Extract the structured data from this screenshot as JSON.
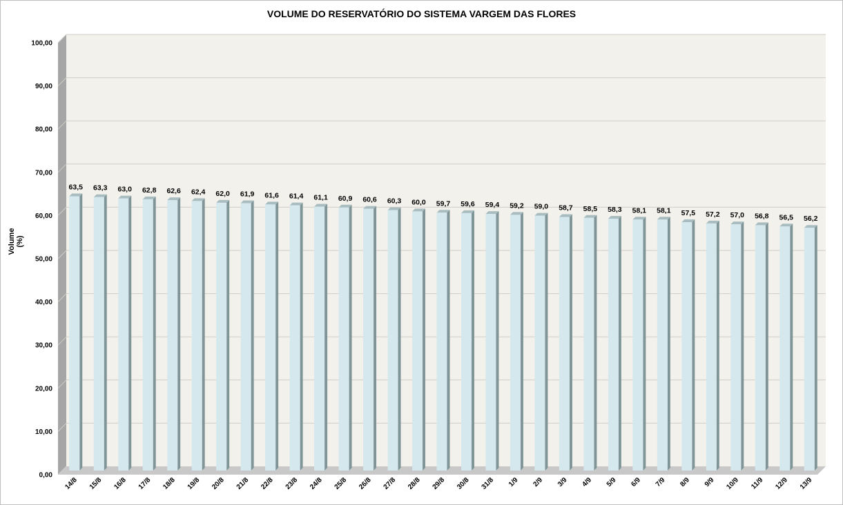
{
  "chart_data": {
    "type": "bar",
    "title": "VOLUME DO RESERVATÓRIO DO SISTEMA VARGEM DAS FLORES",
    "ylabel": "Volume (%)",
    "xlabel": "",
    "ylim": [
      0,
      100
    ],
    "yticks": [
      "0,00",
      "10,00",
      "20,00",
      "30,00",
      "40,00",
      "50,00",
      "60,00",
      "70,00",
      "80,00",
      "90,00",
      "100,00"
    ],
    "categories": [
      "14/8",
      "15/8",
      "16/8",
      "17/8",
      "18/8",
      "19/8",
      "20/8",
      "21/8",
      "22/8",
      "23/8",
      "24/8",
      "25/8",
      "26/8",
      "27/8",
      "28/8",
      "29/8",
      "30/8",
      "31/8",
      "1/9",
      "2/9",
      "3/9",
      "4/9",
      "5/9",
      "6/9",
      "7/9",
      "8/9",
      "9/9",
      "10/9",
      "11/9",
      "12/9",
      "13/9"
    ],
    "values": [
      63.5,
      63.3,
      63.0,
      62.8,
      62.6,
      62.4,
      62.0,
      61.9,
      61.6,
      61.4,
      61.1,
      60.9,
      60.6,
      60.3,
      60.0,
      59.7,
      59.6,
      59.4,
      59.2,
      59.0,
      58.7,
      58.5,
      58.3,
      58.1,
      58.1,
      57.5,
      57.2,
      57.0,
      56.8,
      56.5,
      56.2
    ],
    "data_labels": [
      "63,5",
      "63,3",
      "63,0",
      "62,8",
      "62,6",
      "62,4",
      "62,0",
      "61,9",
      "61,6",
      "61,4",
      "61,1",
      "60,9",
      "60,6",
      "60,3",
      "60,0",
      "59,7",
      "59,6",
      "59,4",
      "59,2",
      "59,0",
      "58,7",
      "58,5",
      "58,3",
      "58,1",
      "58,1",
      "57,5",
      "57,2",
      "57,0",
      "56,8",
      "56,5",
      "56,2"
    ],
    "grid": true,
    "legend": "none",
    "colors": {
      "bar_front": "#d5e8ee",
      "bar_side": "#7f9598",
      "bar_top": "#a9bcc0",
      "plot_back": "#f3f1ec",
      "grid": "#d0cdc5",
      "left_wall": "#a6a6a6",
      "floor": "#c8c8c8"
    }
  }
}
